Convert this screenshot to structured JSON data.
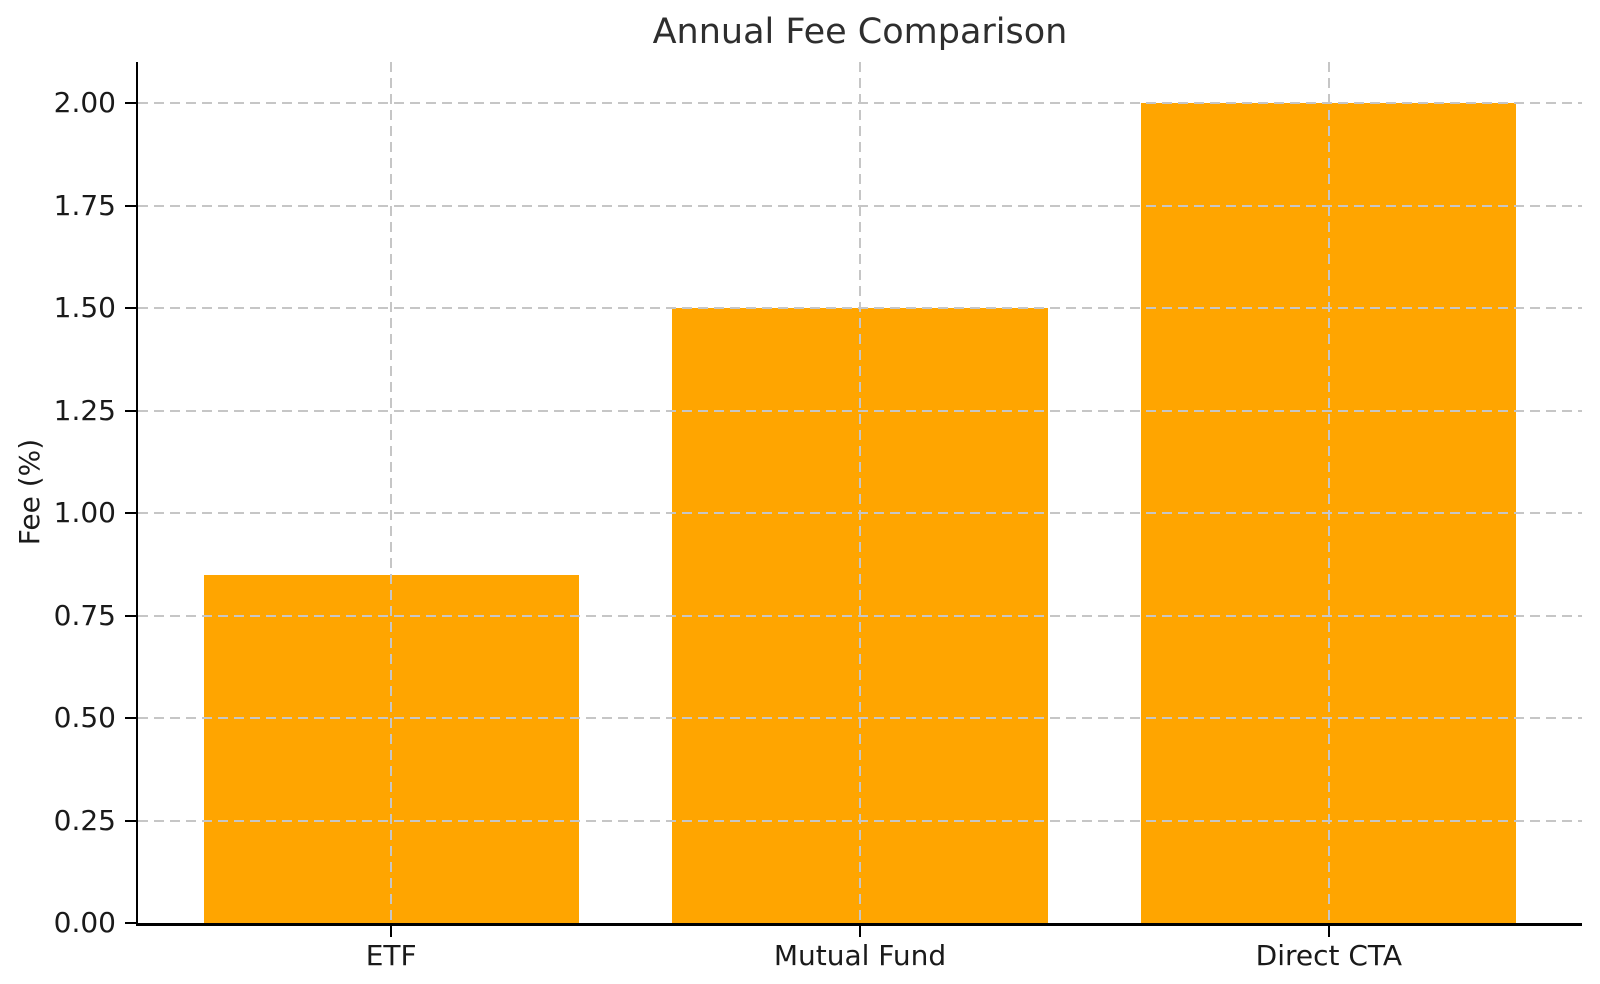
{
  "chart_data": {
    "type": "bar",
    "title": "Annual Fee Comparison",
    "xlabel": "",
    "ylabel": "Fee (%)",
    "categories": [
      "ETF",
      "Mutual Fund",
      "Direct CTA"
    ],
    "values": [
      0.85,
      1.5,
      2.0
    ],
    "y_ticks": [
      {
        "value": 0.0,
        "label": "0.00"
      },
      {
        "value": 0.25,
        "label": "0.25"
      },
      {
        "value": 0.5,
        "label": "0.50"
      },
      {
        "value": 0.75,
        "label": "0.75"
      },
      {
        "value": 1.0,
        "label": "1.00"
      },
      {
        "value": 1.25,
        "label": "1.25"
      },
      {
        "value": 1.5,
        "label": "1.50"
      },
      {
        "value": 1.75,
        "label": "1.75"
      },
      {
        "value": 2.0,
        "label": "2.00"
      }
    ],
    "ylim": [
      0,
      2.1
    ],
    "bar_color": "#FFA500",
    "grid": true,
    "grid_style": "dashed",
    "grid_color": "#c6c6c6",
    "grid_above_bars": true,
    "legend": null
  }
}
